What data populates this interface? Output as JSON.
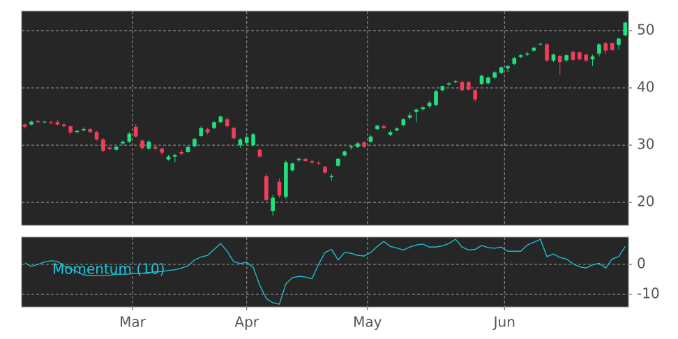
{
  "chart_data": [
    {
      "type": "candlestick",
      "categories": [
        null,
        null,
        null,
        null,
        null,
        null,
        null,
        null,
        null,
        null,
        null,
        null,
        null,
        null,
        null,
        null,
        null,
        null,
        null,
        null,
        null,
        null,
        null,
        null,
        null,
        null,
        null,
        null,
        null,
        null,
        null,
        null,
        null,
        null,
        null,
        null,
        null,
        null,
        null,
        null,
        null,
        null,
        null,
        null,
        null,
        null,
        null,
        null,
        null,
        null,
        null,
        null,
        null,
        null,
        null,
        null,
        null,
        null,
        null,
        null,
        null,
        null,
        null,
        null,
        null,
        null,
        null,
        null,
        null,
        null,
        null,
        null,
        null,
        null,
        null,
        null,
        null,
        null,
        null,
        null,
        null,
        null,
        null,
        null,
        null,
        null,
        null,
        null,
        null,
        null,
        null,
        null,
        null
      ],
      "open": [
        33.6,
        33.6,
        34.2,
        34.0,
        34.0,
        34.0,
        33.6,
        33.3,
        32.3,
        32.6,
        32.8,
        32.3,
        31.0,
        29.6,
        29.2,
        30.3,
        30.6,
        33.2,
        30.8,
        29.4,
        29.7,
        29.4,
        27.5,
        28.0,
        28.8,
        28.8,
        29.8,
        31.6,
        32.8,
        33.0,
        34.0,
        34.5,
        33.0,
        30.0,
        30.4,
        30.0,
        29.2,
        24.6,
        18.5,
        23.6,
        21.0,
        25.6,
        27.4,
        27.6,
        27.2,
        26.9,
        26.2,
        24.4,
        26.4,
        28.2,
        29.6,
        29.7,
        30.5,
        30.6,
        32.8,
        33.3,
        31.8,
        32.6,
        33.5,
        34.8,
        35.8,
        36.3,
        36.8,
        37.0,
        39.6,
        40.6,
        41.0,
        41.0,
        41.0,
        39.6,
        40.7,
        40.8,
        41.8,
        42.6,
        43.4,
        44.2,
        45.4,
        45.8,
        46.5,
        47.6,
        47.6,
        44.8,
        45.6,
        44.8,
        46.3,
        46.2,
        45.8,
        45.0,
        46.0,
        47.8,
        47.8,
        47.5,
        49.2
      ],
      "high": [
        33.8,
        34.3,
        34.4,
        34.2,
        34.3,
        34.4,
        33.9,
        33.5,
        32.6,
        33.1,
        32.9,
        32.5,
        31.2,
        29.8,
        29.9,
        30.8,
        32.3,
        33.7,
        31.0,
        30.9,
        30.0,
        29.6,
        28.3,
        28.5,
        29.2,
        29.9,
        31.3,
        33.3,
        33.0,
        34.2,
        35.2,
        34.9,
        33.2,
        31.2,
        31.6,
        32.1,
        29.5,
        25.0,
        21.3,
        24.2,
        27.3,
        27.0,
        27.9,
        27.8,
        27.5,
        27.2,
        26.4,
        25.0,
        27.8,
        29.1,
        30.0,
        30.5,
        30.6,
        31.8,
        33.6,
        33.6,
        32.6,
        33.1,
        34.7,
        35.7,
        36.4,
        36.8,
        37.7,
        39.7,
        40.4,
        41.0,
        41.4,
        41.3,
        41.2,
        39.8,
        42.3,
        42.0,
        42.9,
        43.8,
        44.0,
        45.4,
        45.9,
        46.3,
        47.2,
        47.9,
        47.8,
        46.0,
        45.8,
        45.9,
        46.5,
        46.4,
        46.0,
        45.8,
        47.8,
        48.0,
        48.0,
        48.8,
        51.6
      ],
      "low": [
        32.9,
        33.4,
        33.8,
        33.8,
        33.6,
        33.4,
        33.1,
        31.8,
        32.0,
        32.4,
        32.1,
        30.8,
        28.8,
        29.0,
        29.0,
        30.0,
        30.4,
        31.3,
        29.2,
        29.1,
        29.1,
        28.3,
        27.3,
        27.0,
        28.2,
        28.6,
        29.6,
        31.4,
        31.9,
        32.8,
        33.8,
        33.1,
        31.0,
        29.5,
        30.2,
        29.8,
        27.8,
        20.2,
        17.7,
        20.8,
        20.6,
        25.3,
        27.0,
        27.1,
        26.7,
        26.5,
        25.0,
        23.8,
        26.2,
        28.0,
        29.2,
        29.5,
        29.5,
        30.4,
        32.6,
        32.8,
        31.6,
        32.4,
        33.3,
        34.5,
        34.0,
        36.0,
        36.5,
        36.8,
        39.4,
        40.3,
        40.8,
        39.4,
        39.5,
        37.6,
        40.5,
        40.6,
        41.6,
        42.4,
        42.8,
        44.0,
        45.2,
        45.6,
        46.3,
        47.4,
        44.5,
        44.5,
        42.3,
        44.5,
        44.7,
        44.8,
        44.5,
        43.8,
        45.5,
        45.8,
        46.5,
        46.7,
        49.0
      ],
      "close": [
        33.2,
        34.1,
        34.0,
        34.1,
        33.9,
        33.6,
        33.3,
        32.2,
        32.5,
        32.8,
        32.3,
        31.0,
        29.0,
        29.3,
        29.7,
        30.6,
        32.0,
        31.5,
        29.5,
        30.6,
        29.4,
        28.7,
        28.0,
        28.3,
        28.5,
        29.7,
        31.1,
        33.0,
        32.2,
        34.0,
        35.0,
        33.3,
        31.2,
        31.0,
        31.4,
        31.9,
        28.0,
        20.4,
        20.8,
        21.2,
        27.0,
        26.8,
        27.6,
        27.2,
        27.0,
        26.8,
        25.2,
        24.6,
        27.6,
        28.9,
        29.8,
        30.3,
        29.7,
        31.5,
        33.4,
        33.0,
        32.3,
        32.9,
        34.5,
        35.2,
        36.2,
        36.6,
        37.4,
        39.4,
        40.3,
        40.8,
        41.2,
        39.6,
        39.7,
        38.0,
        42.1,
        41.8,
        42.7,
        43.6,
        43.8,
        45.2,
        45.7,
        46.0,
        47.0,
        47.7,
        44.8,
        45.8,
        44.5,
        45.7,
        44.9,
        45.0,
        44.8,
        45.5,
        47.6,
        46.5,
        46.6,
        48.6,
        51.4
      ],
      "up_color": "#1fe27f",
      "down_color": "#f23d5b",
      "ylim": [
        16.0,
        53.4
      ],
      "yticks": [
        20,
        30,
        40,
        50
      ],
      "grid": true
    },
    {
      "type": "line",
      "categories": [
        null,
        null,
        null,
        null,
        null,
        null,
        null,
        null,
        null,
        null,
        null,
        null,
        null,
        null,
        null,
        null,
        null,
        null,
        null,
        null,
        null,
        null,
        null,
        null,
        null,
        null,
        null,
        null,
        null,
        null,
        null,
        null,
        null,
        null,
        null,
        null,
        null,
        null,
        null,
        null,
        null,
        null,
        null,
        null,
        null,
        null,
        null,
        null,
        null,
        null,
        null,
        null,
        null,
        null,
        null,
        null,
        null,
        null,
        null,
        null,
        null,
        null,
        null,
        null,
        null,
        null,
        null,
        null,
        null,
        null,
        null,
        null,
        null,
        null,
        null,
        null,
        null,
        null,
        null,
        null,
        null,
        null,
        null,
        null,
        null,
        null,
        null,
        null,
        null,
        null,
        null,
        null,
        null
      ],
      "series": [
        {
          "name": "Momentum (10)",
          "color": "#1cc6dc",
          "values": [
            0.5,
            -0.7,
            0,
            0.8,
            1.2,
            1,
            -0.5,
            -1.5,
            -2.5,
            -3.5,
            -3.7,
            -3.8,
            -3.8,
            -3.6,
            -3.3,
            -3.3,
            -3.2,
            -3,
            -3,
            -2.7,
            -2.5,
            -2.4,
            -2,
            -1.8,
            -1.2,
            -0.5,
            1.5,
            2.5,
            3,
            5,
            7,
            4.4,
            0.9,
            0.3,
            0.7,
            -1,
            -7,
            -11.4,
            -12.8,
            -13.3,
            -6.5,
            -4.4,
            -4,
            -4.2,
            -4.8,
            0,
            4,
            5,
            1.5,
            4,
            3.7,
            3,
            2.8,
            4,
            6,
            7.7,
            6,
            5.5,
            4.8,
            5.8,
            6.5,
            6.8,
            5.8,
            5.8,
            6.2,
            7,
            8.4,
            5.8,
            4.8,
            5,
            6.3,
            5.6,
            5.4,
            5.8,
            4.4,
            4.4,
            4.4,
            6.5,
            7.4,
            8.4,
            2.6,
            3.5,
            2.3,
            1.8,
            0.2,
            -0.8,
            -1.2,
            -0.2,
            0.4,
            -1.2,
            1.8,
            2.6,
            6
          ]
        }
      ],
      "xticks": [
        {
          "value": 16.5,
          "label": "Mar"
        },
        {
          "value": 34,
          "label": "Apr"
        },
        {
          "value": 52.5,
          "label": "May"
        },
        {
          "value": 73.5,
          "label": "Jun"
        }
      ],
      "ylim": [
        -14.2,
        9.1
      ],
      "yticks": [
        0,
        -10
      ],
      "grid": true
    }
  ]
}
